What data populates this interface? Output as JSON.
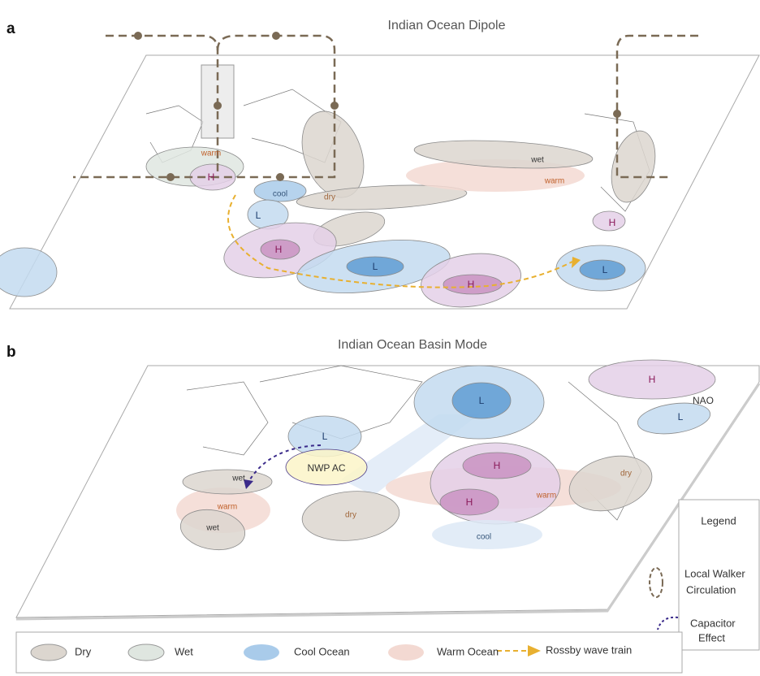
{
  "panels": [
    {
      "letter": "a",
      "title": "Indian Ocean Dipole",
      "labels": [
        "warm",
        "H",
        "cool",
        "dry",
        "L",
        "H",
        "L",
        "H",
        "wet",
        "warm",
        "H",
        "L"
      ]
    },
    {
      "letter": "b",
      "title": "Indian Ocean Basin Mode",
      "labels": [
        "H",
        "NAO",
        "L",
        "L",
        "L",
        "NWP AC",
        "H",
        "H",
        "dry",
        "warm",
        "wet",
        "warm",
        "dry",
        "cool",
        "wet"
      ]
    }
  ],
  "legend": {
    "title": "Legend",
    "items": [
      [
        "Local Walker",
        "Circulation"
      ],
      [
        "Capacitor",
        "Effect"
      ]
    ],
    "bottom": [
      "Dry",
      "Wet",
      "Cool Ocean",
      "Warm Ocean",
      "Rossby wave train"
    ]
  }
}
